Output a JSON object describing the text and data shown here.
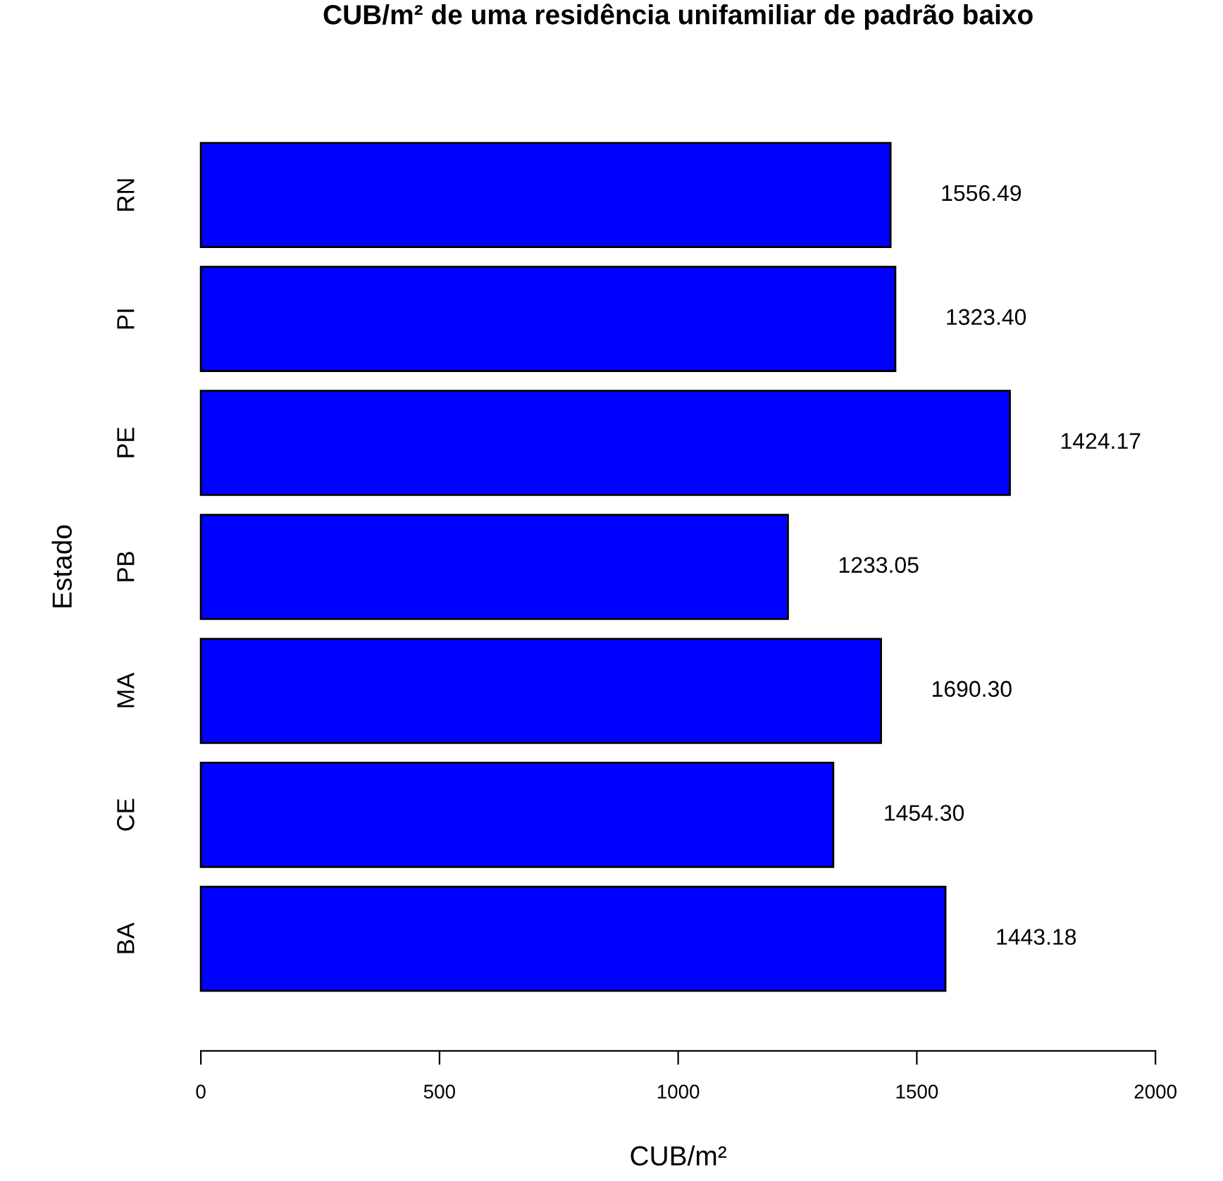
{
  "chart_data": {
    "type": "bar",
    "orientation": "horizontal",
    "title": "CUB/m² de uma residência unifamiliar de padrão baixo",
    "xlabel": "CUB/m²",
    "ylabel": "Estado",
    "categories": [
      "RN",
      "PI",
      "PE",
      "PB",
      "MA",
      "CE",
      "BA"
    ],
    "values": [
      1445,
      1455,
      1695,
      1230,
      1425,
      1325,
      1560
    ],
    "annotations": [
      "1556.49",
      "1323.40",
      "1424.17",
      "1233.05",
      "1690.30",
      "1454.30",
      "1443.18"
    ],
    "color": "#0000ff",
    "xlim": [
      0,
      2000
    ],
    "xticks": [
      0,
      500,
      1000,
      1500,
      2000
    ],
    "grid": false,
    "legend": false
  }
}
